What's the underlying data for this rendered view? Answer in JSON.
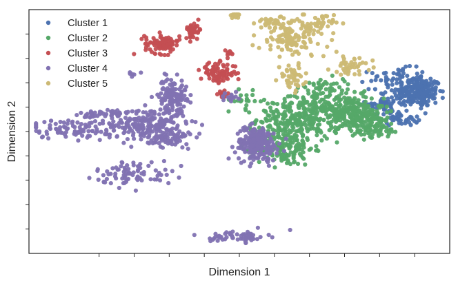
{
  "chart_data": {
    "type": "scatter",
    "title": "",
    "xlabel": "Dimension 1",
    "ylabel": "Dimension 2",
    "xlim": [
      -60,
      60
    ],
    "ylim": [
      -50,
      50
    ],
    "grid": false,
    "legend_position": "top-left",
    "tick_labels_shown": false,
    "x_ticks": [
      -40,
      -30,
      -20,
      -10,
      0,
      10,
      20,
      30,
      40,
      50
    ],
    "y_ticks": [
      -40,
      -30,
      -20,
      -10,
      0,
      10,
      20,
      30,
      40
    ],
    "series": [
      {
        "name": "Cluster 1",
        "color": "#4c72b0",
        "groups": [
          {
            "cx": 51,
            "cy": 16,
            "sx": 3.5,
            "sy": 3.0,
            "n": 200
          },
          {
            "cx": 45,
            "cy": 22,
            "sx": 4.0,
            "sy": 2.0,
            "n": 60
          },
          {
            "cx": 41,
            "cy": 11,
            "sx": 2.5,
            "sy": 2.5,
            "n": 50
          },
          {
            "cx": 46,
            "cy": 6,
            "sx": 3.0,
            "sy": 1.8,
            "n": 45
          }
        ]
      },
      {
        "name": "Cluster 2",
        "color": "#55a868",
        "groups": [
          {
            "cx": 17,
            "cy": 5,
            "sx": 6.0,
            "sy": 4.5,
            "n": 300
          },
          {
            "cx": 31,
            "cy": 8,
            "sx": 5.0,
            "sy": 3.5,
            "n": 220
          },
          {
            "cx": 13,
            "cy": -7,
            "sx": 4.0,
            "sy": 3.5,
            "n": 140
          },
          {
            "cx": 38,
            "cy": 2,
            "sx": 4.0,
            "sy": 2.5,
            "n": 100
          },
          {
            "cx": 21,
            "cy": 17,
            "sx": 3.0,
            "sy": 2.5,
            "n": 30
          },
          {
            "cx": 28,
            "cy": 19,
            "sx": 3.0,
            "sy": 2.5,
            "n": 25
          },
          {
            "cx": 1,
            "cy": 13,
            "sx": 2.0,
            "sy": 2.0,
            "n": 18
          }
        ]
      },
      {
        "name": "Cluster 3",
        "color": "#c44e52",
        "groups": [
          {
            "cx": -22,
            "cy": 36,
            "sx": 2.5,
            "sy": 2.0,
            "n": 90
          },
          {
            "cx": -13,
            "cy": 42,
            "sx": 1.2,
            "sy": 1.5,
            "n": 35
          },
          {
            "cx": -6,
            "cy": 24,
            "sx": 2.5,
            "sy": 2.0,
            "n": 90
          },
          {
            "cx": -3,
            "cy": 32,
            "sx": 0.8,
            "sy": 0.8,
            "n": 12
          },
          {
            "cx": -5,
            "cy": 15,
            "sx": 1.0,
            "sy": 1.0,
            "n": 12
          }
        ]
      },
      {
        "name": "Cluster 4",
        "color": "#8172b2",
        "groups": [
          {
            "cx": -25,
            "cy": 3,
            "sx": 5.0,
            "sy": 3.5,
            "n": 200
          },
          {
            "cx": -19,
            "cy": 15,
            "sx": 2.0,
            "sy": 3.5,
            "n": 120
          },
          {
            "cx": -47,
            "cy": 1,
            "sx": 7.0,
            "sy": 2.0,
            "n": 100
          },
          {
            "cx": -38,
            "cy": 7,
            "sx": 3.5,
            "sy": 1.3,
            "n": 50
          },
          {
            "cx": -20,
            "cy": -3,
            "sx": 3.0,
            "sy": 1.8,
            "n": 60
          },
          {
            "cx": -30,
            "cy": -17,
            "sx": 5.5,
            "sy": 2.5,
            "n": 80
          },
          {
            "cx": 5,
            "cy": -5,
            "sx": 3.0,
            "sy": 3.5,
            "n": 220
          },
          {
            "cx": 0,
            "cy": -43,
            "sx": 4.0,
            "sy": 1.2,
            "n": 60
          },
          {
            "cx": -30,
            "cy": 24,
            "sx": 1.0,
            "sy": 0.6,
            "n": 6
          },
          {
            "cx": -3,
            "cy": 14,
            "sx": 1.5,
            "sy": 1.0,
            "n": 15
          }
        ]
      },
      {
        "name": "Cluster 5",
        "color": "#ccb974",
        "groups": [
          {
            "cx": 15,
            "cy": 38,
            "sx": 5.0,
            "sy": 4.0,
            "n": 120
          },
          {
            "cx": 22,
            "cy": 44,
            "sx": 2.5,
            "sy": 2.0,
            "n": 40
          },
          {
            "cx": 10,
            "cy": 45,
            "sx": 3.0,
            "sy": 1.0,
            "n": 30
          },
          {
            "cx": -1,
            "cy": 48,
            "sx": 1.0,
            "sy": 0.8,
            "n": 15
          },
          {
            "cx": 15,
            "cy": 22,
            "sx": 1.8,
            "sy": 2.5,
            "n": 45
          },
          {
            "cx": 32,
            "cy": 27,
            "sx": 3.0,
            "sy": 1.8,
            "n": 40
          }
        ]
      }
    ]
  }
}
